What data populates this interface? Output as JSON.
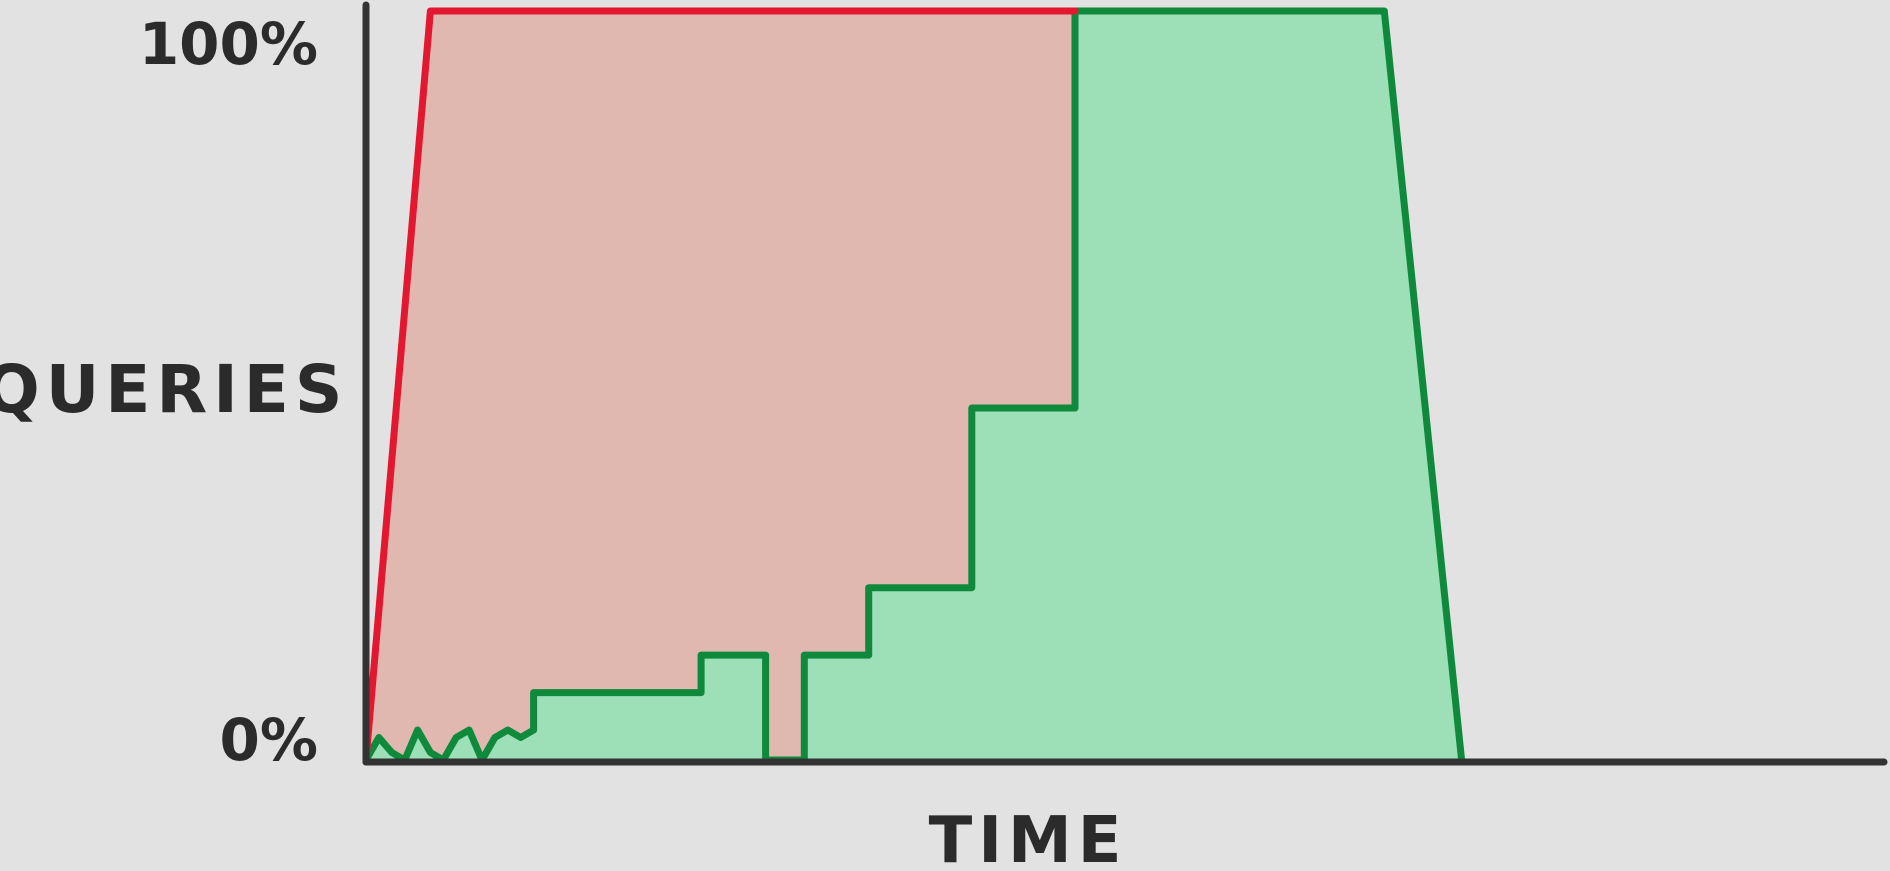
{
  "chart_data": {
    "type": "area",
    "title": "",
    "xlabel": "TIME",
    "ylabel": "QUERIES",
    "yticks": [
      "0%",
      "100%"
    ],
    "ylim": [
      0,
      100
    ],
    "xlim": [
      0,
      100
    ],
    "grid": false,
    "legend": "none",
    "colors": {
      "red_line": "#e3172f",
      "red_fill": "#e0b8b0",
      "green_line": "#0f8a3c",
      "green_fill": "#9ddfb7",
      "axis": "#333333",
      "background": "#e2e2e2"
    },
    "series": [
      {
        "values_xy": [
          [
            0,
            0
          ],
          [
            5,
            100
          ],
          [
            55,
            100
          ]
        ]
      },
      {
        "values_xy": [
          [
            0,
            0
          ],
          [
            1,
            3
          ],
          [
            2,
            1
          ],
          [
            3,
            0
          ],
          [
            4,
            4
          ],
          [
            5,
            1
          ],
          [
            6,
            0
          ],
          [
            7,
            3
          ],
          [
            8,
            4
          ],
          [
            9,
            0
          ],
          [
            10,
            3
          ],
          [
            11,
            4
          ],
          [
            12,
            3
          ],
          [
            13,
            4
          ],
          [
            13,
            9
          ],
          [
            26,
            9
          ],
          [
            26,
            14
          ],
          [
            31,
            14
          ],
          [
            31,
            0
          ],
          [
            34,
            0
          ],
          [
            34,
            14
          ],
          [
            39,
            14
          ],
          [
            39,
            23
          ],
          [
            47,
            23
          ],
          [
            47,
            47
          ],
          [
            55,
            47
          ],
          [
            55,
            100
          ],
          [
            79,
            100
          ],
          [
            85,
            0
          ]
        ]
      }
    ]
  }
}
